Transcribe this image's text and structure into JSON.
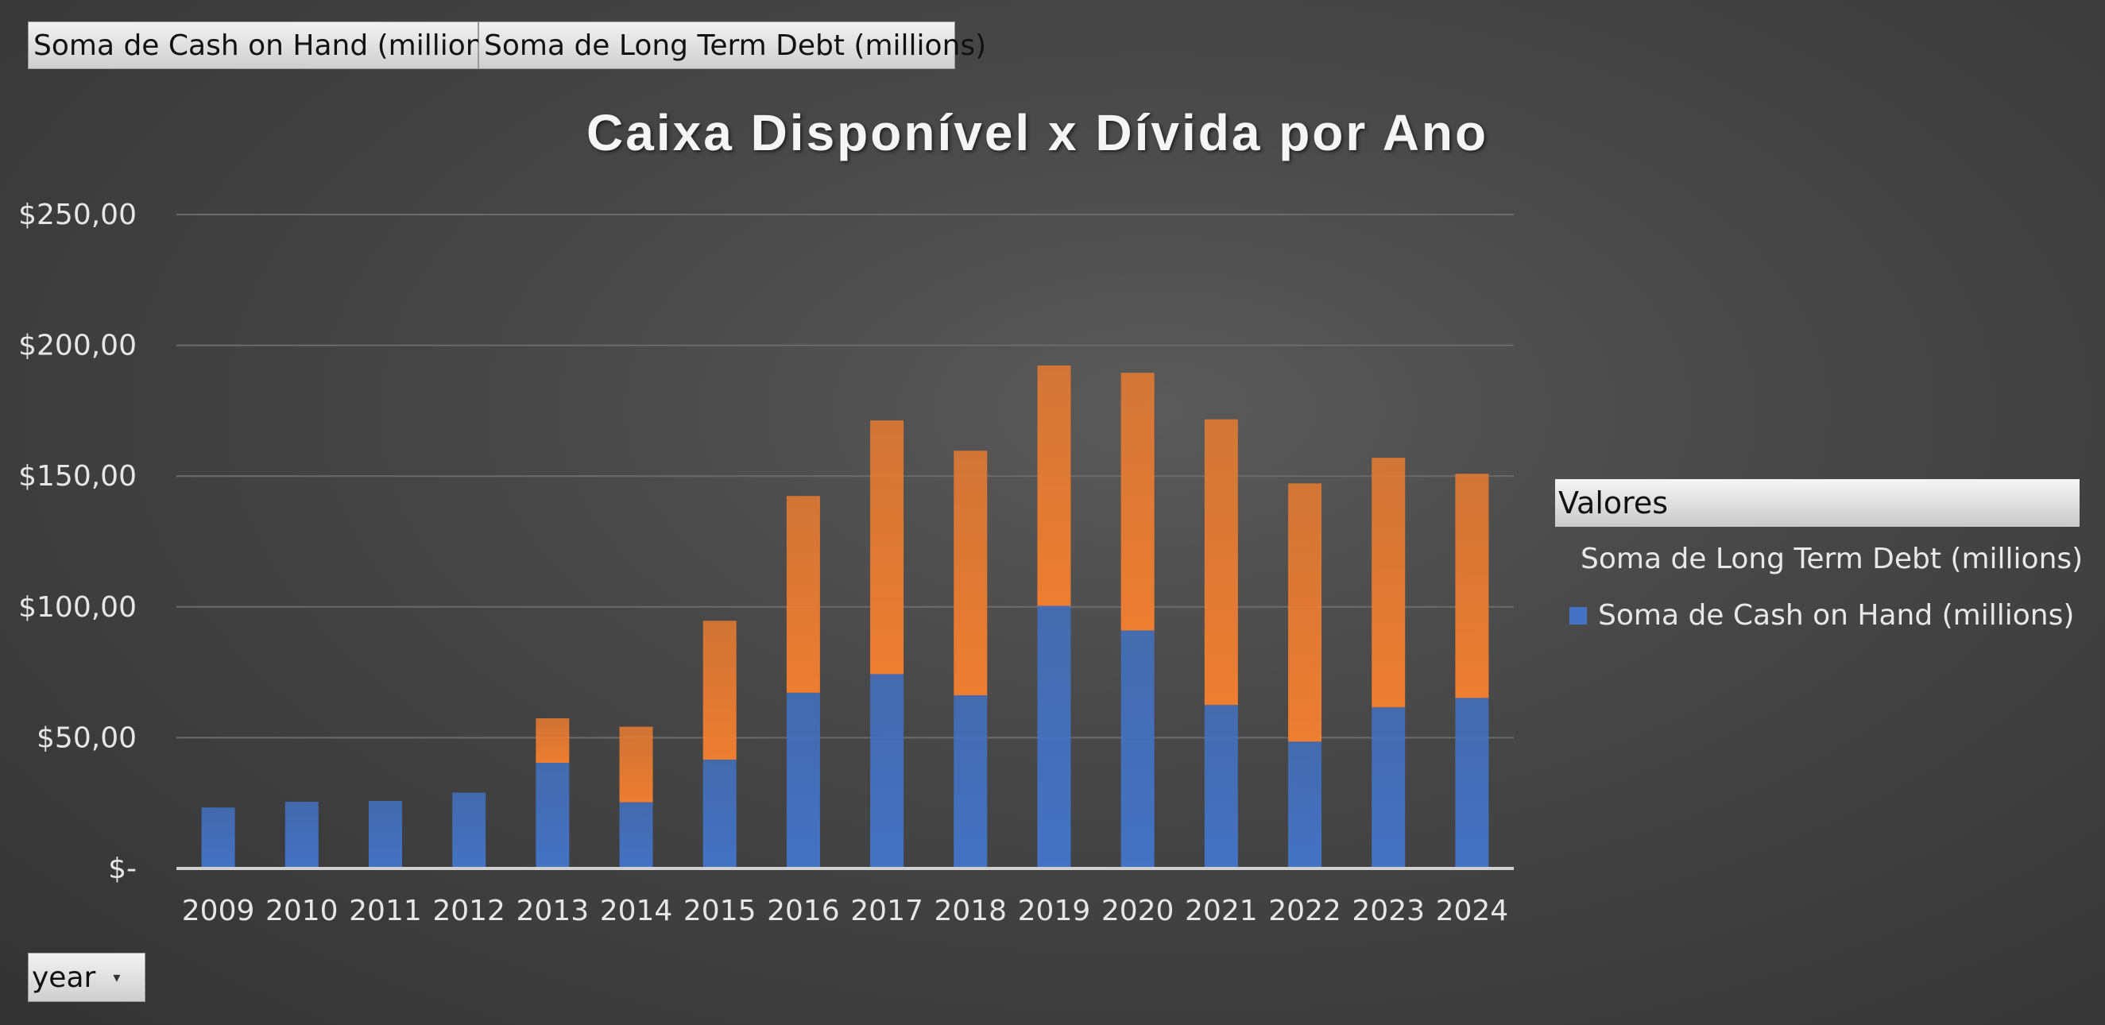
{
  "field_buttons": {
    "cash": "Soma de Cash on Hand (millions)",
    "debt": "Soma de Long Term Debt (millions)"
  },
  "filter": {
    "label": "year",
    "icon": "dropdown-caret-icon"
  },
  "legend": {
    "header": "Valores",
    "items": [
      {
        "label": "Soma de Long Term Debt (millions)",
        "color": "#ed7d31"
      },
      {
        "label": "Soma de Cash on Hand (millions)",
        "color": "#4472c4"
      }
    ]
  },
  "chart_data": {
    "type": "bar",
    "stacked": true,
    "title": "Caixa Disponível x Dívida por Ano",
    "xlabel": "",
    "ylabel": "",
    "categories": [
      "2009",
      "2010",
      "2011",
      "2012",
      "2013",
      "2014",
      "2015",
      "2016",
      "2017",
      "2018",
      "2019",
      "2020",
      "2021",
      "2022",
      "2023",
      "2024"
    ],
    "series": [
      {
        "name": "Soma de Cash on Hand (millions)",
        "color": "#4472c4",
        "values": [
          23.3,
          25.5,
          25.8,
          29.0,
          40.4,
          25.3,
          41.6,
          67.2,
          74.3,
          66.2,
          100.4,
          91.0,
          62.5,
          48.5,
          61.6,
          65.2
        ]
      },
      {
        "name": "Soma de Long Term Debt (millions)",
        "color": "#ed7d31",
        "values": [
          0,
          0,
          0,
          0,
          17.0,
          28.9,
          53.1,
          75.2,
          97.0,
          93.5,
          91.9,
          98.5,
          109.2,
          98.7,
          95.4,
          85.7
        ]
      }
    ],
    "ylim": [
      0,
      250
    ],
    "yticks": [
      0,
      50,
      100,
      150,
      200,
      250
    ],
    "ytick_labels": [
      "$-",
      "$50,00",
      "$100,00",
      "$150,00",
      "$200,00",
      "$250,00"
    ],
    "grid": true,
    "legend_position": "right"
  }
}
